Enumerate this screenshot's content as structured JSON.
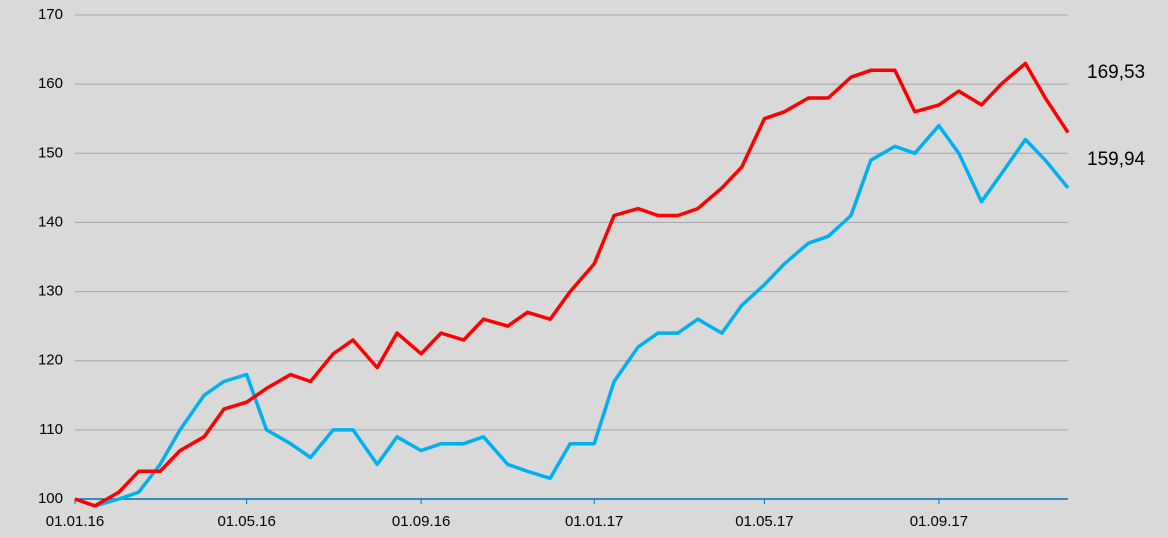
{
  "chart_data": {
    "type": "line",
    "x": [
      "01.01.16",
      "15.01.16",
      "01.02.16",
      "15.02.16",
      "01.03.16",
      "15.03.16",
      "01.04.16",
      "15.04.16",
      "01.05.16",
      "15.05.16",
      "01.06.16",
      "15.06.16",
      "01.07.16",
      "15.07.16",
      "01.08.16",
      "15.08.16",
      "01.09.16",
      "15.09.16",
      "01.10.16",
      "15.10.16",
      "01.11.16",
      "15.11.16",
      "01.12.16",
      "15.12.16",
      "01.01.17",
      "15.01.17",
      "01.02.17",
      "15.02.17",
      "01.03.17",
      "15.03.17",
      "01.04.17",
      "15.04.17",
      "01.05.17",
      "15.05.17",
      "01.06.17",
      "15.06.17",
      "01.07.17",
      "15.07.17",
      "01.08.17",
      "15.08.17",
      "01.09.17",
      "15.09.17",
      "01.10.17",
      "15.10.17",
      "01.11.17",
      "15.11.17",
      "01.12.17"
    ],
    "series": [
      {
        "color": "#ff0000",
        "values": [
          100,
          99,
          101,
          104,
          104,
          107,
          109,
          113,
          114,
          116,
          118,
          117,
          121,
          123,
          119,
          124,
          121,
          124,
          123,
          126,
          125,
          127,
          126,
          130,
          134,
          141,
          142,
          141,
          141,
          142,
          145,
          148,
          155,
          156,
          158,
          158,
          161,
          162,
          162,
          156,
          157,
          159,
          157,
          160,
          163,
          158,
          153
        ]
      },
      {
        "color": "#00b0f0",
        "values": [
          100,
          99,
          100,
          101,
          105,
          110,
          115,
          117,
          118,
          110,
          108,
          106,
          110,
          110,
          105,
          109,
          107,
          108,
          108,
          109,
          105,
          104,
          103,
          108,
          108,
          117,
          122,
          124,
          124,
          126,
          124,
          128,
          131,
          134,
          137,
          138,
          141,
          149,
          151,
          150,
          154,
          150,
          143,
          147,
          152,
          149,
          145
        ]
      }
    ],
    "annotations": [
      {
        "text": "169,53",
        "color": "#ff0000"
      },
      {
        "text": "159,94",
        "color": "#1f1fa0"
      }
    ],
    "xlim": [
      "01.01.16",
      "01.12.17"
    ],
    "xticks": [
      "01.01.16",
      "01.05.16",
      "01.09.16",
      "01.01.17",
      "01.05.17",
      "01.09.17"
    ],
    "ylim": [
      100,
      170
    ],
    "yticks": [
      100,
      110,
      120,
      130,
      140,
      150,
      160,
      170
    ],
    "grid": true,
    "axis_color": "#0070c0"
  }
}
